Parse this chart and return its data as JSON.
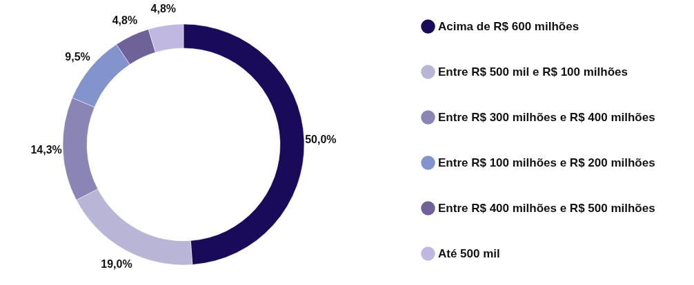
{
  "chart_data": {
    "type": "donut",
    "categories": [
      "Acima de R$ 600 milhões",
      "Entre R$ 500 mil e R$ 100 milhões",
      "Entre R$ 300 milhões e R$ 400 milhões",
      "Entre R$ 100 milhões e R$ 200 milhões",
      "Entre R$ 400 milhões e R$ 500 milhões",
      "Até 500 mil"
    ],
    "values": [
      50.0,
      19.0,
      14.3,
      9.5,
      4.8,
      4.8
    ],
    "colors": [
      "#1a0a5a",
      "#b8b5d6",
      "#8b85b5",
      "#8394cc",
      "#6e6299",
      "#c0b8e0"
    ],
    "value_labels": [
      "50,0%",
      "19,0%",
      "14,3%",
      "9,5%",
      "4,8%",
      "4,8%"
    ],
    "legend": "right"
  }
}
